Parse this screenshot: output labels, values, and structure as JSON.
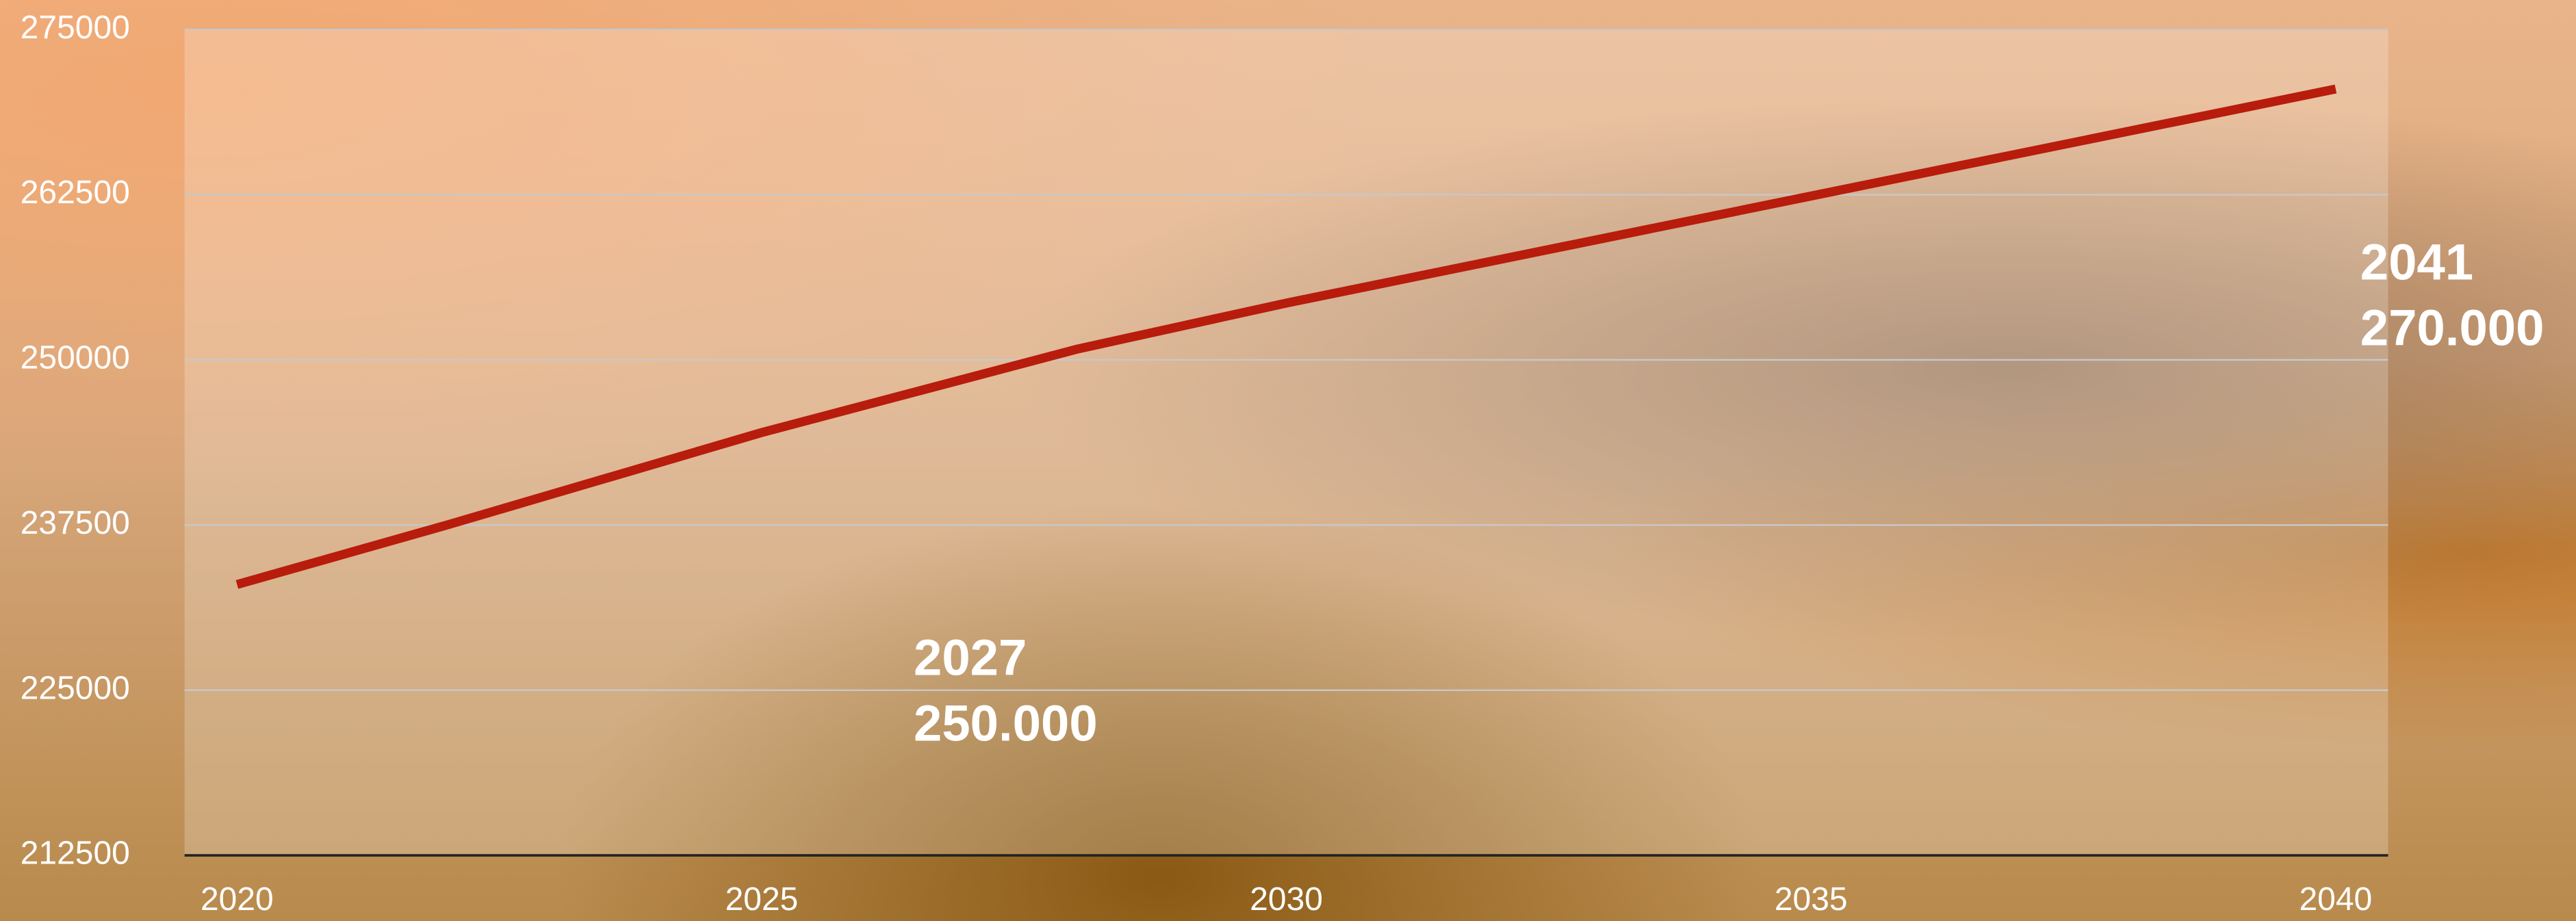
{
  "chart_data": {
    "type": "line",
    "x": [
      2020,
      2022,
      2025,
      2028,
      2030,
      2035,
      2040
    ],
    "series": [
      {
        "color": "#b81c0c",
        "values": [
          233000,
          237500,
          244500,
          250800,
          254300,
          262400,
          270500
        ]
      }
    ],
    "xlim": [
      2019.5,
      2040.5
    ],
    "xticks": [
      2020,
      2025,
      2030,
      2035,
      2040
    ],
    "ylim": [
      212500,
      275000
    ],
    "yticks": [
      212500,
      225000,
      237500,
      250000,
      262500,
      275000
    ],
    "grid": true,
    "annotations": [
      {
        "lines": [
          "2027",
          "250.000"
        ]
      },
      {
        "lines": [
          "2041",
          "270.000"
        ]
      }
    ]
  }
}
